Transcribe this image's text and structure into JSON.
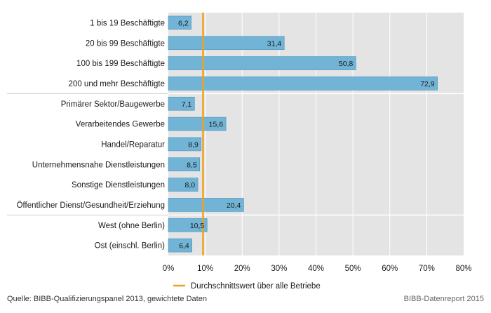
{
  "chart_data": {
    "type": "bar",
    "orientation": "horizontal",
    "categories": [
      "1 bis 19 Beschäftigte",
      "20 bis 99 Beschäftigte",
      "100 bis 199 Beschäftigte",
      "200 und mehr Beschäftigte",
      "Primärer Sektor/Baugewerbe",
      "Verarbeitendes Gewerbe",
      "Handel/Reparatur",
      "Unternehmensnahe Dienstleistungen",
      "Sonstige Dienstleistungen",
      "Öffentlicher Dienst/Gesundheit/Erziehung",
      "West (ohne Berlin)",
      "Ost (einschl. Berlin)"
    ],
    "values": [
      6.2,
      31.4,
      50.8,
      72.9,
      7.1,
      15.6,
      8.9,
      8.5,
      8.0,
      20.4,
      10.5,
      6.4
    ],
    "value_labels": [
      "6,2",
      "31,4",
      "50,8",
      "72,9",
      "7,1",
      "15,6",
      "8,9",
      "8,5",
      "8,0",
      "20,4",
      "10,5",
      "6,4"
    ],
    "groups": [
      [
        0,
        1,
        2,
        3
      ],
      [
        4,
        5,
        6,
        7,
        8,
        9
      ],
      [
        10,
        11
      ]
    ],
    "xlim": [
      0,
      80
    ],
    "xticks": [
      "0%",
      "10%",
      "20%",
      "30%",
      "40%",
      "50%",
      "60%",
      "70%",
      "80%"
    ],
    "reference_line": {
      "value": 9.4,
      "label": "Durchschnittswert über alle Betriebe"
    },
    "grid": true,
    "legend": "bottom-center",
    "colors": {
      "bar": "#72b4d6",
      "bar_stroke": "#4a93bb",
      "plot_background": "#e4e4e4",
      "grid": "#ffffff",
      "reference": "#f0a020"
    }
  },
  "footer": {
    "source": "Quelle: BIBB-Qualifizierungspanel 2013, gewichtete Daten",
    "credit": "BIBB-Datenreport 2015"
  }
}
